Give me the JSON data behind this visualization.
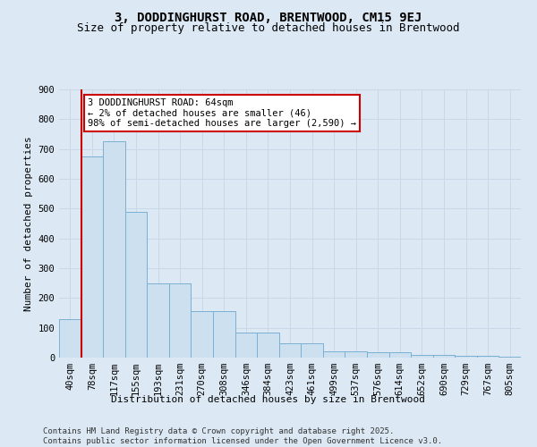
{
  "title": "3, DODDINGHURST ROAD, BRENTWOOD, CM15 9EJ",
  "subtitle": "Size of property relative to detached houses in Brentwood",
  "xlabel": "Distribution of detached houses by size in Brentwood",
  "ylabel": "Number of detached properties",
  "footer": "Contains HM Land Registry data © Crown copyright and database right 2025.\nContains public sector information licensed under the Open Government Licence v3.0.",
  "categories": [
    "40sqm",
    "78sqm",
    "117sqm",
    "155sqm",
    "193sqm",
    "231sqm",
    "270sqm",
    "308sqm",
    "346sqm",
    "384sqm",
    "423sqm",
    "461sqm",
    "499sqm",
    "537sqm",
    "576sqm",
    "614sqm",
    "652sqm",
    "690sqm",
    "729sqm",
    "767sqm",
    "805sqm"
  ],
  "values": [
    130,
    675,
    725,
    490,
    250,
    250,
    155,
    155,
    83,
    83,
    48,
    48,
    20,
    20,
    18,
    18,
    10,
    10,
    5,
    5,
    2
  ],
  "bar_color": "#cce0f0",
  "bar_edge_color": "#7ab0d4",
  "property_line_x": 0.5,
  "annotation_text": "3 DODDINGHURST ROAD: 64sqm\n← 2% of detached houses are smaller (46)\n98% of semi-detached houses are larger (2,590) →",
  "annotation_box_color": "#ffffff",
  "annotation_box_edge": "#cc0000",
  "ylim": [
    0,
    900
  ],
  "yticks": [
    0,
    100,
    200,
    300,
    400,
    500,
    600,
    700,
    800,
    900
  ],
  "grid_color": "#c8d8e8",
  "bg_color": "#dce9f5",
  "title_fontsize": 10,
  "subtitle_fontsize": 9,
  "axis_label_fontsize": 8,
  "tick_fontsize": 7.5,
  "footer_fontsize": 6.5,
  "annotation_fontsize": 7.5
}
